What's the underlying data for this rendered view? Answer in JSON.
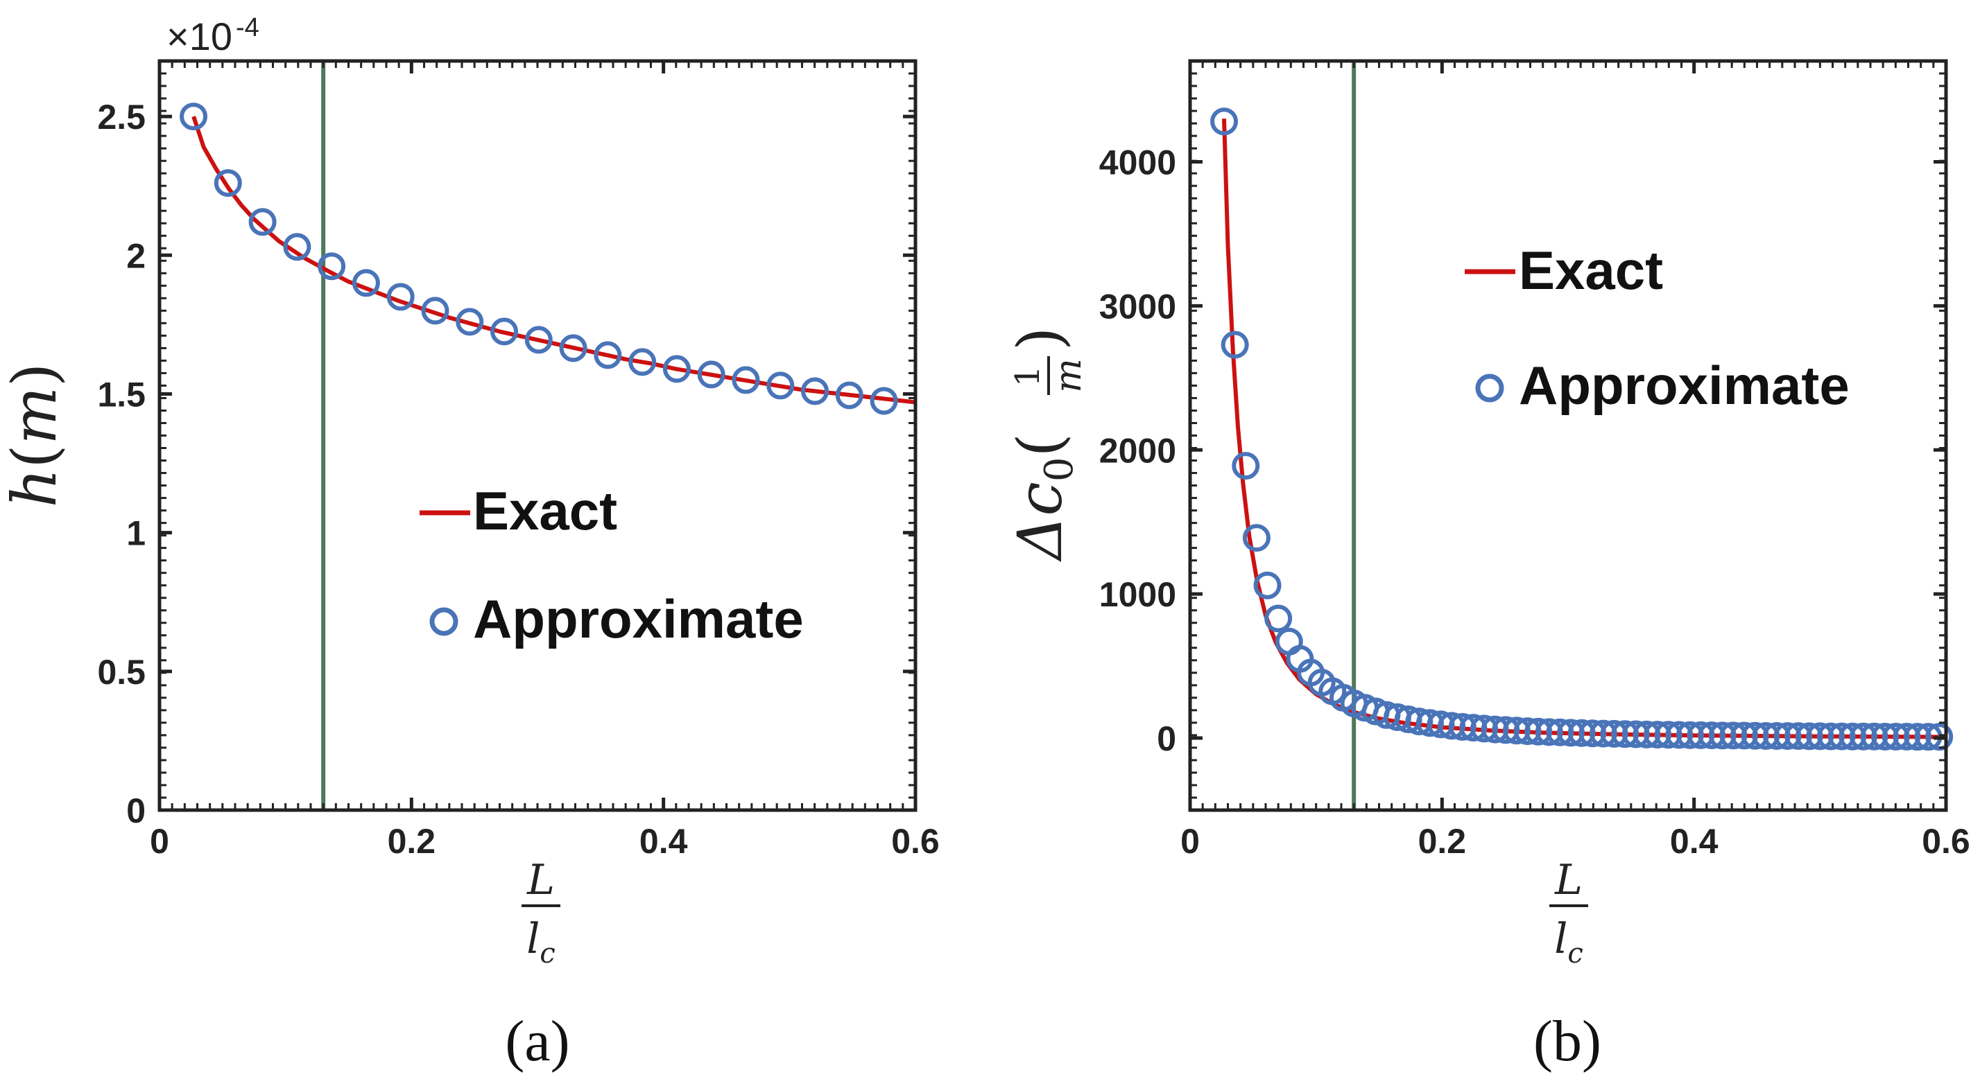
{
  "chart_data": [
    {
      "type": "line",
      "panel": "(a)",
      "xlabel_num": "L",
      "xlabel_den": "l",
      "xlabel_den_sub": "c",
      "ylabel_main": "h",
      "ylabel_open": "(",
      "ylabel_unit": "m",
      "ylabel_close": ")",
      "exponent_prefix": "×10",
      "exponent": "-4",
      "xlim": [
        0,
        0.6
      ],
      "ylim": [
        0,
        2.7
      ],
      "xticks": [
        "0",
        "0.2",
        "0.4",
        "0.6"
      ],
      "xtick_values": [
        0,
        0.2,
        0.4,
        0.6
      ],
      "yticks": [
        "0",
        "0.5",
        "1",
        "1.5",
        "2",
        "2.5"
      ],
      "ytick_values": [
        0,
        0.5,
        1,
        1.5,
        2,
        2.5
      ],
      "vline_x": 0.13,
      "vline_color": "#4f7a5a",
      "legend_loc": "center",
      "series": [
        {
          "name": "Exact",
          "kind": "line",
          "color": "#cc1111",
          "x": [
            0.027,
            0.035,
            0.045,
            0.055,
            0.065,
            0.075,
            0.085,
            0.095,
            0.105,
            0.115,
            0.125,
            0.135,
            0.15,
            0.17,
            0.19,
            0.21,
            0.23,
            0.25,
            0.27,
            0.29,
            0.31,
            0.33,
            0.35,
            0.37,
            0.39,
            0.41,
            0.43,
            0.45,
            0.47,
            0.49,
            0.51,
            0.53,
            0.55,
            0.57,
            0.6
          ],
          "y": [
            2.5,
            2.39,
            2.31,
            2.24,
            2.18,
            2.13,
            2.09,
            2.05,
            2.02,
            1.99,
            1.965,
            1.94,
            1.905,
            1.87,
            1.835,
            1.805,
            1.775,
            1.75,
            1.725,
            1.705,
            1.685,
            1.665,
            1.645,
            1.625,
            1.61,
            1.59,
            1.575,
            1.56,
            1.545,
            1.53,
            1.515,
            1.505,
            1.495,
            1.485,
            1.47
          ]
        },
        {
          "name": "Approximate",
          "kind": "markers",
          "color": "#4a74b8",
          "x": [
            0.027,
            0.0544,
            0.0818,
            0.1092,
            0.1366,
            0.164,
            0.1914,
            0.2188,
            0.2462,
            0.2736,
            0.301,
            0.3284,
            0.3558,
            0.3832,
            0.4106,
            0.438,
            0.4654,
            0.4928,
            0.5202,
            0.5476,
            0.575
          ],
          "y": [
            2.5,
            2.26,
            2.12,
            2.03,
            1.96,
            1.9,
            1.85,
            1.8,
            1.76,
            1.725,
            1.695,
            1.665,
            1.64,
            1.615,
            1.59,
            1.57,
            1.55,
            1.53,
            1.51,
            1.495,
            1.475
          ]
        }
      ]
    },
    {
      "type": "line",
      "panel": "(b)",
      "xlabel_num": "L",
      "xlabel_den": "l",
      "xlabel_den_sub": "c",
      "ylabel_main": "Δc",
      "ylabel_sub": "0",
      "ylabel_open": "(",
      "ylabel_frac_num": "1",
      "ylabel_frac_den": "m",
      "ylabel_close": ")",
      "xlim": [
        0,
        0.6
      ],
      "ylim": [
        -500,
        4700
      ],
      "xticks": [
        "0",
        "0.2",
        "0.4",
        "0.6"
      ],
      "xtick_values": [
        0,
        0.2,
        0.4,
        0.6
      ],
      "yticks": [
        "0",
        "1000",
        "2000",
        "3000",
        "4000"
      ],
      "ytick_values": [
        0,
        1000,
        2000,
        3000,
        4000
      ],
      "vline_x": 0.13,
      "vline_color": "#4f7a5a",
      "legend_loc": "top-right",
      "series": [
        {
          "name": "Exact",
          "kind": "line",
          "color": "#cc1111",
          "x": [
            0.027,
            0.03,
            0.034,
            0.038,
            0.042,
            0.047,
            0.053,
            0.06,
            0.068,
            0.077,
            0.087,
            0.1,
            0.115,
            0.13,
            0.15,
            0.17,
            0.2,
            0.24,
            0.28,
            0.33,
            0.4,
            0.5,
            0.6
          ],
          "y": [
            4300,
            3420,
            2690,
            2160,
            1770,
            1400,
            1100,
            850,
            665,
            520,
            405,
            305,
            230,
            180,
            135,
            105,
            75,
            52,
            38,
            27,
            18,
            12,
            8
          ]
        },
        {
          "name": "Approximate",
          "kind": "markers",
          "color": "#4a74b8",
          "x": [
            0.027,
            0.0356,
            0.0442,
            0.0528,
            0.0614,
            0.07,
            0.0786,
            0.0872,
            0.0958,
            0.1044,
            0.113,
            0.1216,
            0.1302,
            0.1388,
            0.1474,
            0.156,
            0.1646,
            0.1732,
            0.1818,
            0.1904,
            0.199,
            0.2076,
            0.2162,
            0.2248,
            0.2334,
            0.242,
            0.2506,
            0.2592,
            0.2678,
            0.2764,
            0.285,
            0.2936,
            0.3022,
            0.3108,
            0.3194,
            0.328,
            0.3366,
            0.3452,
            0.3538,
            0.3624,
            0.371,
            0.3796,
            0.3882,
            0.3968,
            0.4054,
            0.414,
            0.4226,
            0.4312,
            0.4398,
            0.4484,
            0.457,
            0.4656,
            0.4742,
            0.4828,
            0.4914,
            0.5,
            0.5086,
            0.5172,
            0.5258,
            0.5344,
            0.543,
            0.5516,
            0.5602,
            0.5688,
            0.5774,
            0.586,
            0.5946
          ],
          "y": [
            4280,
            2730,
            1890,
            1390,
            1060,
            830,
            670,
            550,
            455,
            385,
            325,
            280,
            240,
            210,
            185,
            160,
            145,
            130,
            115,
            105,
            95,
            85,
            78,
            72,
            66,
            60,
            56,
            52,
            48,
            45,
            42,
            40,
            37,
            35,
            33,
            31,
            30,
            28,
            27,
            25,
            24,
            23,
            22,
            21,
            20,
            19,
            18,
            18,
            17,
            16,
            15,
            15,
            14,
            14,
            13,
            13,
            12,
            12,
            11,
            11,
            11,
            10,
            10,
            10,
            9,
            9,
            9
          ]
        }
      ]
    }
  ]
}
